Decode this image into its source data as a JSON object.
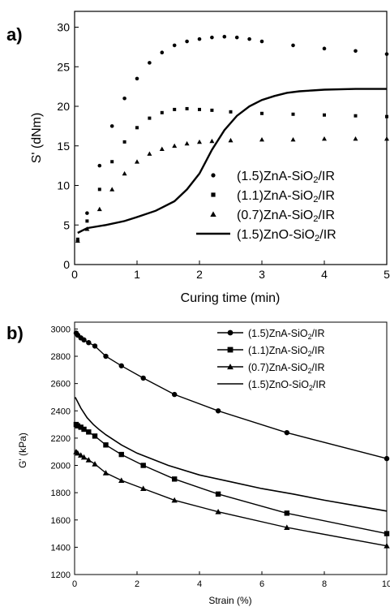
{
  "chart_data": [
    {
      "type": "scatter",
      "panel_label": "a)",
      "xlabel": "Curing time (min)",
      "ylabel": "S' (dNm)",
      "xlim": [
        0,
        5
      ],
      "ylim": [
        0,
        32
      ],
      "xticks": [
        "0",
        "1",
        "2",
        "3",
        "4",
        "5"
      ],
      "yticks": [
        "0",
        "5",
        "10",
        "15",
        "20",
        "25",
        "30"
      ],
      "legend_position": "lower-right",
      "series": [
        {
          "name_parts": [
            "(1.5)ZnA-SiO",
            "2",
            "/IR"
          ],
          "marker": "circle",
          "x": [
            0.05,
            0.2,
            0.4,
            0.6,
            0.8,
            1.0,
            1.2,
            1.4,
            1.6,
            1.8,
            2.0,
            2.2,
            2.4,
            2.6,
            2.8,
            3.0,
            3.5,
            4.0,
            4.5,
            5.0
          ],
          "y": [
            3.0,
            6.5,
            12.5,
            17.5,
            21.0,
            23.5,
            25.5,
            26.8,
            27.7,
            28.2,
            28.5,
            28.7,
            28.8,
            28.7,
            28.5,
            28.2,
            27.7,
            27.3,
            27.0,
            26.6
          ]
        },
        {
          "name_parts": [
            "(1.1)ZnA-SiO",
            "2",
            "/IR"
          ],
          "marker": "square",
          "x": [
            0.05,
            0.2,
            0.4,
            0.6,
            0.8,
            1.0,
            1.2,
            1.4,
            1.6,
            1.8,
            2.0,
            2.2,
            2.5,
            3.0,
            3.5,
            4.0,
            4.5,
            5.0
          ],
          "y": [
            3.2,
            5.5,
            9.5,
            13.0,
            15.5,
            17.3,
            18.5,
            19.2,
            19.6,
            19.7,
            19.6,
            19.5,
            19.3,
            19.1,
            19.0,
            18.9,
            18.8,
            18.7
          ]
        },
        {
          "name_parts": [
            "(0.7)ZnA-SiO",
            "2",
            "/IR"
          ],
          "marker": "triangle",
          "x": [
            0.05,
            0.2,
            0.4,
            0.6,
            0.8,
            1.0,
            1.2,
            1.4,
            1.6,
            1.8,
            2.0,
            2.2,
            2.5,
            3.0,
            3.5,
            4.0,
            4.5,
            5.0
          ],
          "y": [
            3.0,
            4.5,
            7.0,
            9.5,
            11.5,
            13.0,
            14.0,
            14.6,
            15.0,
            15.3,
            15.5,
            15.6,
            15.7,
            15.8,
            15.8,
            15.9,
            15.9,
            15.9
          ]
        },
        {
          "name_parts": [
            "(1.5)ZnO-SiO",
            "2",
            "/IR"
          ],
          "marker": "line",
          "x": [
            0.05,
            0.2,
            0.5,
            0.8,
            1.0,
            1.3,
            1.6,
            1.8,
            2.0,
            2.2,
            2.4,
            2.6,
            2.8,
            3.0,
            3.2,
            3.4,
            3.6,
            3.8,
            4.0,
            4.5,
            5.0
          ],
          "y": [
            4.0,
            4.6,
            5.0,
            5.5,
            6.0,
            6.8,
            8.0,
            9.5,
            11.5,
            14.5,
            17.0,
            18.8,
            20.0,
            20.8,
            21.3,
            21.7,
            21.9,
            22.0,
            22.1,
            22.2,
            22.2
          ]
        }
      ]
    },
    {
      "type": "line",
      "panel_label": "b)",
      "xlabel": "Strain (%)",
      "ylabel": "G' (kPa)",
      "xlim": [
        0,
        10
      ],
      "ylim": [
        1200,
        3050
      ],
      "xticks": [
        "0",
        "2",
        "4",
        "6",
        "8",
        "10"
      ],
      "yticks": [
        "1200",
        "1400",
        "1600",
        "1800",
        "2000",
        "2200",
        "2400",
        "2600",
        "2800",
        "3000"
      ],
      "legend_position": "top-right",
      "series": [
        {
          "name_parts": [
            "(1.5)ZnA-SiO",
            "2",
            "/IR"
          ],
          "marker": "circle",
          "x": [
            0.05,
            0.1,
            0.2,
            0.3,
            0.45,
            0.65,
            1.0,
            1.5,
            2.2,
            3.2,
            4.6,
            6.8,
            10.0
          ],
          "y": [
            2970,
            2955,
            2935,
            2920,
            2900,
            2875,
            2800,
            2730,
            2640,
            2520,
            2400,
            2240,
            2050
          ]
        },
        {
          "name_parts": [
            "(1.1)ZnA-SiO",
            "2",
            "/IR"
          ],
          "marker": "square",
          "x": [
            0.05,
            0.1,
            0.2,
            0.3,
            0.45,
            0.65,
            1.0,
            1.5,
            2.2,
            3.2,
            4.6,
            6.8,
            10.0
          ],
          "y": [
            2300,
            2290,
            2280,
            2265,
            2245,
            2215,
            2150,
            2080,
            2000,
            1900,
            1790,
            1650,
            1500
          ]
        },
        {
          "name_parts": [
            "(0.7)ZnA-SiO",
            "2",
            "/IR"
          ],
          "marker": "triangle",
          "x": [
            0.05,
            0.1,
            0.2,
            0.3,
            0.45,
            0.65,
            1.0,
            1.5,
            2.2,
            3.2,
            4.6,
            6.8,
            10.0
          ],
          "y": [
            2100,
            2090,
            2075,
            2060,
            2040,
            2010,
            1945,
            1890,
            1830,
            1745,
            1660,
            1545,
            1410
          ]
        },
        {
          "name_parts": [
            "(1.5)ZnO-SiO",
            "2",
            "/IR"
          ],
          "marker": "line",
          "x": [
            0.02,
            0.2,
            0.4,
            0.6,
            0.8,
            1.0,
            1.5,
            2.0,
            3.0,
            4.0,
            5.0,
            6.0,
            7.0,
            8.0,
            9.0,
            10.0
          ],
          "y": [
            2500,
            2420,
            2350,
            2300,
            2260,
            2225,
            2150,
            2090,
            2000,
            1930,
            1880,
            1830,
            1790,
            1745,
            1705,
            1665
          ]
        }
      ]
    }
  ]
}
